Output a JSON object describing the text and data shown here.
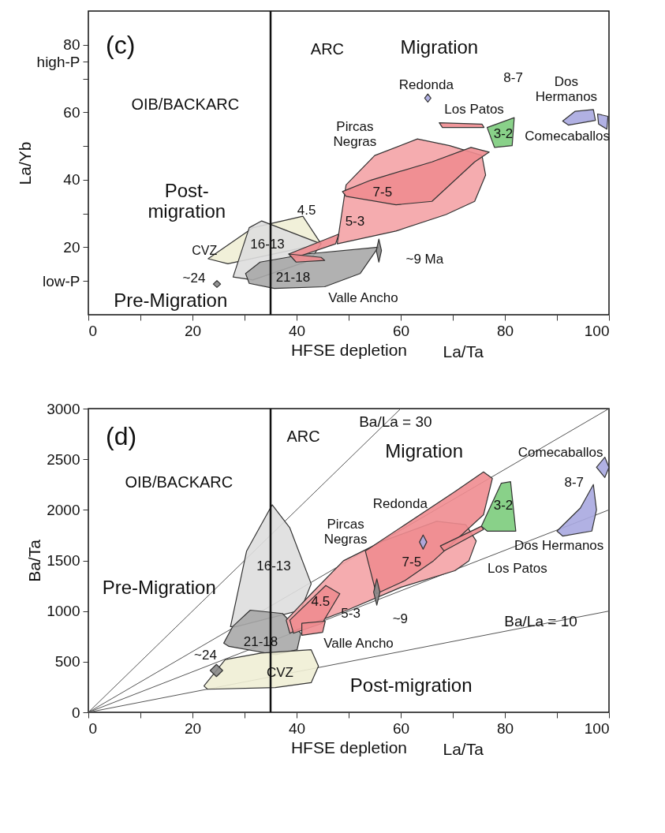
{
  "chart_data": [
    {
      "type": "area",
      "title": "(c)",
      "xlabel": "HFSE depletion",
      "ylabel": "La/Yb",
      "xlim": [
        0,
        100
      ],
      "ylim": [
        0,
        90
      ],
      "xticks": [
        0,
        {
          "value": 10,
          "label": null
        },
        20,
        {
          "value": 30,
          "label": null
        },
        40,
        {
          "value": 50,
          "label": null
        },
        60,
        {
          "value": 70,
          "label": null
        },
        80,
        {
          "value": 90,
          "label": null
        },
        100
      ],
      "yticks": [
        {
          "value": 10,
          "label": "low-P"
        },
        20,
        {
          "value": 30,
          "label": null
        },
        40,
        {
          "value": 50,
          "label": null
        },
        60,
        {
          "value": 70,
          "label": null
        },
        {
          "value": 75,
          "label": "high-P"
        },
        80
      ],
      "grid": false,
      "ref_lines": [
        {
          "axis": "x",
          "value": 35
        }
      ],
      "series": [
        {
          "type": "area",
          "color": "#efeed5",
          "x": [
            23.0,
            31.6,
            41.2,
            44.7,
            26.8
          ],
          "values": [
            16.6,
            25.8,
            29.2,
            21.0,
            15.1
          ]
        },
        {
          "type": "area",
          "color": "#dedede",
          "x": [
            27.8,
            30.9,
            33.3,
            44.7,
            42.6,
            31.6
          ],
          "values": [
            11.2,
            25.8,
            27.8,
            21.0,
            16.1,
            10.3
          ]
        },
        {
          "color": "#a8a8a8",
          "x": [
            30.2,
            33.0,
            41.9,
            55.7,
            52.2,
            45.4,
            35.7,
            30.9
          ],
          "values": [
            12.2,
            15.6,
            18.0,
            20.0,
            12.2,
            8.3,
            7.8,
            9.3
          ]
        },
        {
          "color": "#888888",
          "x": [
            55.3,
            55.8,
            56.3,
            55.8
          ],
          "values": [
            19.0,
            22.4,
            19.0,
            15.6
          ]
        },
        {
          "color": "#888888",
          "x": [
            24.0,
            24.7,
            25.4,
            24.7
          ],
          "values": [
            9.1,
            10.1,
            9.1,
            8.1
          ]
        },
        {
          "color": "#f4a3a6",
          "x": [
            47.8,
            49.5,
            55.0,
            63.2,
            69.4,
            75.6,
            76.3,
            74.2,
            68.7,
            59.1
          ],
          "values": [
            21.0,
            38.5,
            47.2,
            52.1,
            50.1,
            47.2,
            41.4,
            33.6,
            29.7,
            24.8
          ]
        },
        {
          "color": "#f08c90",
          "x": [
            48.8,
            54.3,
            66.0,
            73.5,
            77.0,
            74.2,
            66.0,
            59.1,
            49.5
          ],
          "values": [
            36.5,
            39.9,
            45.3,
            49.6,
            48.2,
            45.3,
            33.6,
            32.6,
            35.1
          ]
        },
        {
          "color": "#f08c90",
          "x": [
            38.5,
            48.1,
            47.5,
            39.9
          ],
          "values": [
            18.0,
            23.9,
            21.0,
            17.0
          ]
        },
        {
          "color": "#f08c90",
          "x": [
            38.5,
            44.7,
            45.4,
            39.9
          ],
          "values": [
            18.0,
            17.0,
            16.1,
            15.6
          ]
        },
        {
          "color": "#f08c90",
          "x": [
            67.4,
            75.6,
            76.0,
            68.0
          ],
          "values": [
            56.9,
            56.5,
            55.5,
            55.5
          ]
        },
        {
          "color": "#7ccc7c",
          "x": [
            76.6,
            81.8,
            81.4,
            78.0
          ],
          "values": [
            55.5,
            58.4,
            50.1,
            49.6
          ]
        },
        {
          "color": "#a9a9e0",
          "x": [
            64.6,
            65.2,
            65.8,
            65.2
          ],
          "values": [
            64.2,
            65.4,
            64.2,
            63.0
          ]
        },
        {
          "color": "#a9a9e0",
          "x": [
            91.1,
            93.5,
            97.0,
            97.4,
            92.2
          ],
          "values": [
            57.4,
            60.3,
            60.8,
            57.6,
            56.2
          ]
        },
        {
          "color": "#a9a9e0",
          "x": [
            97.8,
            99.8,
            99.6,
            98.0
          ],
          "values": [
            59.5,
            58.8,
            55.0,
            56.5
          ]
        }
      ],
      "annotations": [
        "La/Ta",
        "ARC",
        "Migration",
        "OIB/BACKARC",
        "Post-\nmigration",
        "Pre-Migration",
        "CVZ",
        "16-13",
        "21-18",
        "~24",
        "4.5",
        "5-3",
        "7-5",
        "Valle Ancho",
        "~9 Ma",
        "Pircas\nNegras",
        "Redonda",
        "Los Patos",
        "8-7",
        "Dos\nHermanos",
        "3-2",
        "Comecaballos"
      ]
    },
    {
      "type": "area",
      "title": "(d)",
      "xlabel": "HFSE depletion",
      "ylabel": "Ba/Ta",
      "xlim": [
        0,
        100
      ],
      "ylim": [
        0,
        3000
      ],
      "xticks": [
        0,
        {
          "value": 10,
          "label": null
        },
        20,
        {
          "value": 30,
          "label": null
        },
        40,
        {
          "value": 50,
          "label": null
        },
        60,
        {
          "value": 70,
          "label": null
        },
        80,
        {
          "value": 90,
          "label": null
        },
        100
      ],
      "yticks": [
        0,
        500,
        1000,
        1500,
        2000,
        2500,
        3000
      ],
      "grid": false,
      "ref_lines": [
        {
          "axis": "x",
          "value": 35
        }
      ],
      "series": [
        {
          "type": "line",
          "color": "#555555",
          "x": [
            0,
            60
          ],
          "values": [
            0,
            3000
          ]
        },
        {
          "type": "line",
          "color": "#555555",
          "x": [
            0,
            100
          ],
          "values": [
            0,
            3000
          ]
        },
        {
          "type": "line",
          "color": "#555555",
          "x": [
            0,
            100
          ],
          "values": [
            0,
            2000
          ]
        },
        {
          "type": "line",
          "color": "#555555",
          "x": [
            0,
            100
          ],
          "values": [
            0,
            1000
          ]
        },
        {
          "type": "area",
          "color": "#dedede",
          "x": [
            27.3,
            30.4,
            35.3,
            38.7,
            42.8,
            40.8,
            28.4
          ],
          "values": [
            846,
            1594,
            2050,
            1822,
            1269,
            1009,
            846
          ]
        },
        {
          "color": "#a8a8a8",
          "x": [
            26.0,
            27.7,
            31.1,
            37.3,
            40.8,
            40.1,
            36.0,
            27.0
          ],
          "values": [
            683,
            846,
            1009,
            976,
            781,
            618,
            569,
            651
          ]
        },
        {
          "color": "#efeed5",
          "x": [
            22.2,
            26.3,
            33.2,
            42.8,
            44.2,
            42.8,
            35.9,
            22.9
          ],
          "values": [
            260,
            521,
            586,
            618,
            456,
            293,
            244,
            228
          ]
        },
        {
          "color": "#888888",
          "x": [
            23.4,
            24.6,
            25.8,
            24.6
          ],
          "values": [
            413,
            473,
            413,
            353
          ]
        },
        {
          "color": "#f4a3a6",
          "x": [
            38.0,
            42.8,
            49.0,
            56.6,
            66.9,
            72.5,
            74.5,
            73.1,
            70.4,
            60.1,
            49.7,
            41.4,
            38.7
          ],
          "values": [
            911,
            1171,
            1497,
            1692,
            1887,
            1854,
            1692,
            1497,
            1399,
            1236,
            1009,
            846,
            781
          ]
        },
        {
          "color": "#f08c90",
          "x": [
            53.2,
            70.4,
            75.9,
            77.6,
            75.9,
            66.3,
            60.8,
            55.3
          ],
          "values": [
            1594,
            2180,
            2375,
            2310,
            1952,
            1497,
            1301,
            1171
          ]
        },
        {
          "color": "#f08c90",
          "x": [
            38.7,
            45.6,
            48.3,
            44.9,
            39.4
          ],
          "values": [
            911,
            1253,
            1171,
            879,
            781
          ]
        },
        {
          "color": "#f08c90",
          "x": [
            41.0,
            45.5,
            45.0,
            41.0
          ],
          "values": [
            880,
            900,
            790,
            760
          ]
        },
        {
          "color": "#888888",
          "x": [
            54.8,
            55.4,
            56.0,
            55.4
          ],
          "values": [
            1188,
            1318,
            1188,
            1058
          ]
        },
        {
          "color": "#f08c90",
          "x": [
            67.6,
            75.5,
            75.9,
            68.3
          ],
          "values": [
            1643,
            1838,
            1806,
            1594
          ]
        },
        {
          "color": "#7ccc7c",
          "x": [
            75.5,
            79.3,
            81.1,
            82.1,
            76.6
          ],
          "values": [
            1838,
            2262,
            2278,
            1790,
            1790
          ]
        },
        {
          "color": "#a9a9e0",
          "x": [
            63.6,
            64.3,
            65.0,
            64.3
          ],
          "values": [
            1682,
            1752,
            1682,
            1612
          ]
        },
        {
          "color": "#a9a9e0",
          "x": [
            90.0,
            94.5,
            97.0,
            97.6,
            96.7,
            91.1
          ],
          "values": [
            1790,
            2018,
            2250,
            2000,
            1790,
            1741
          ]
        },
        {
          "color": "#a9a9e0",
          "x": [
            97.6,
            99.2,
            100,
            99.2
          ],
          "values": [
            2420,
            2520,
            2420,
            2320
          ]
        }
      ],
      "annotations": [
        "La/Ta",
        "ARC",
        "Migration",
        "OIB/BACKARC",
        "Pre-Migration",
        "16-13",
        "21-18",
        "~24",
        "CVZ",
        "4.5",
        "5-3",
        "7-5",
        "~9",
        "Valle Ancho",
        "Redonda",
        "Pircas\nNegras",
        "3-2",
        "8-7",
        "Comecaballos",
        "Dos Hermanos",
        "Los Patos",
        "Post-migration",
        "Ba/La = 30",
        "Ba/La = 10"
      ]
    }
  ]
}
